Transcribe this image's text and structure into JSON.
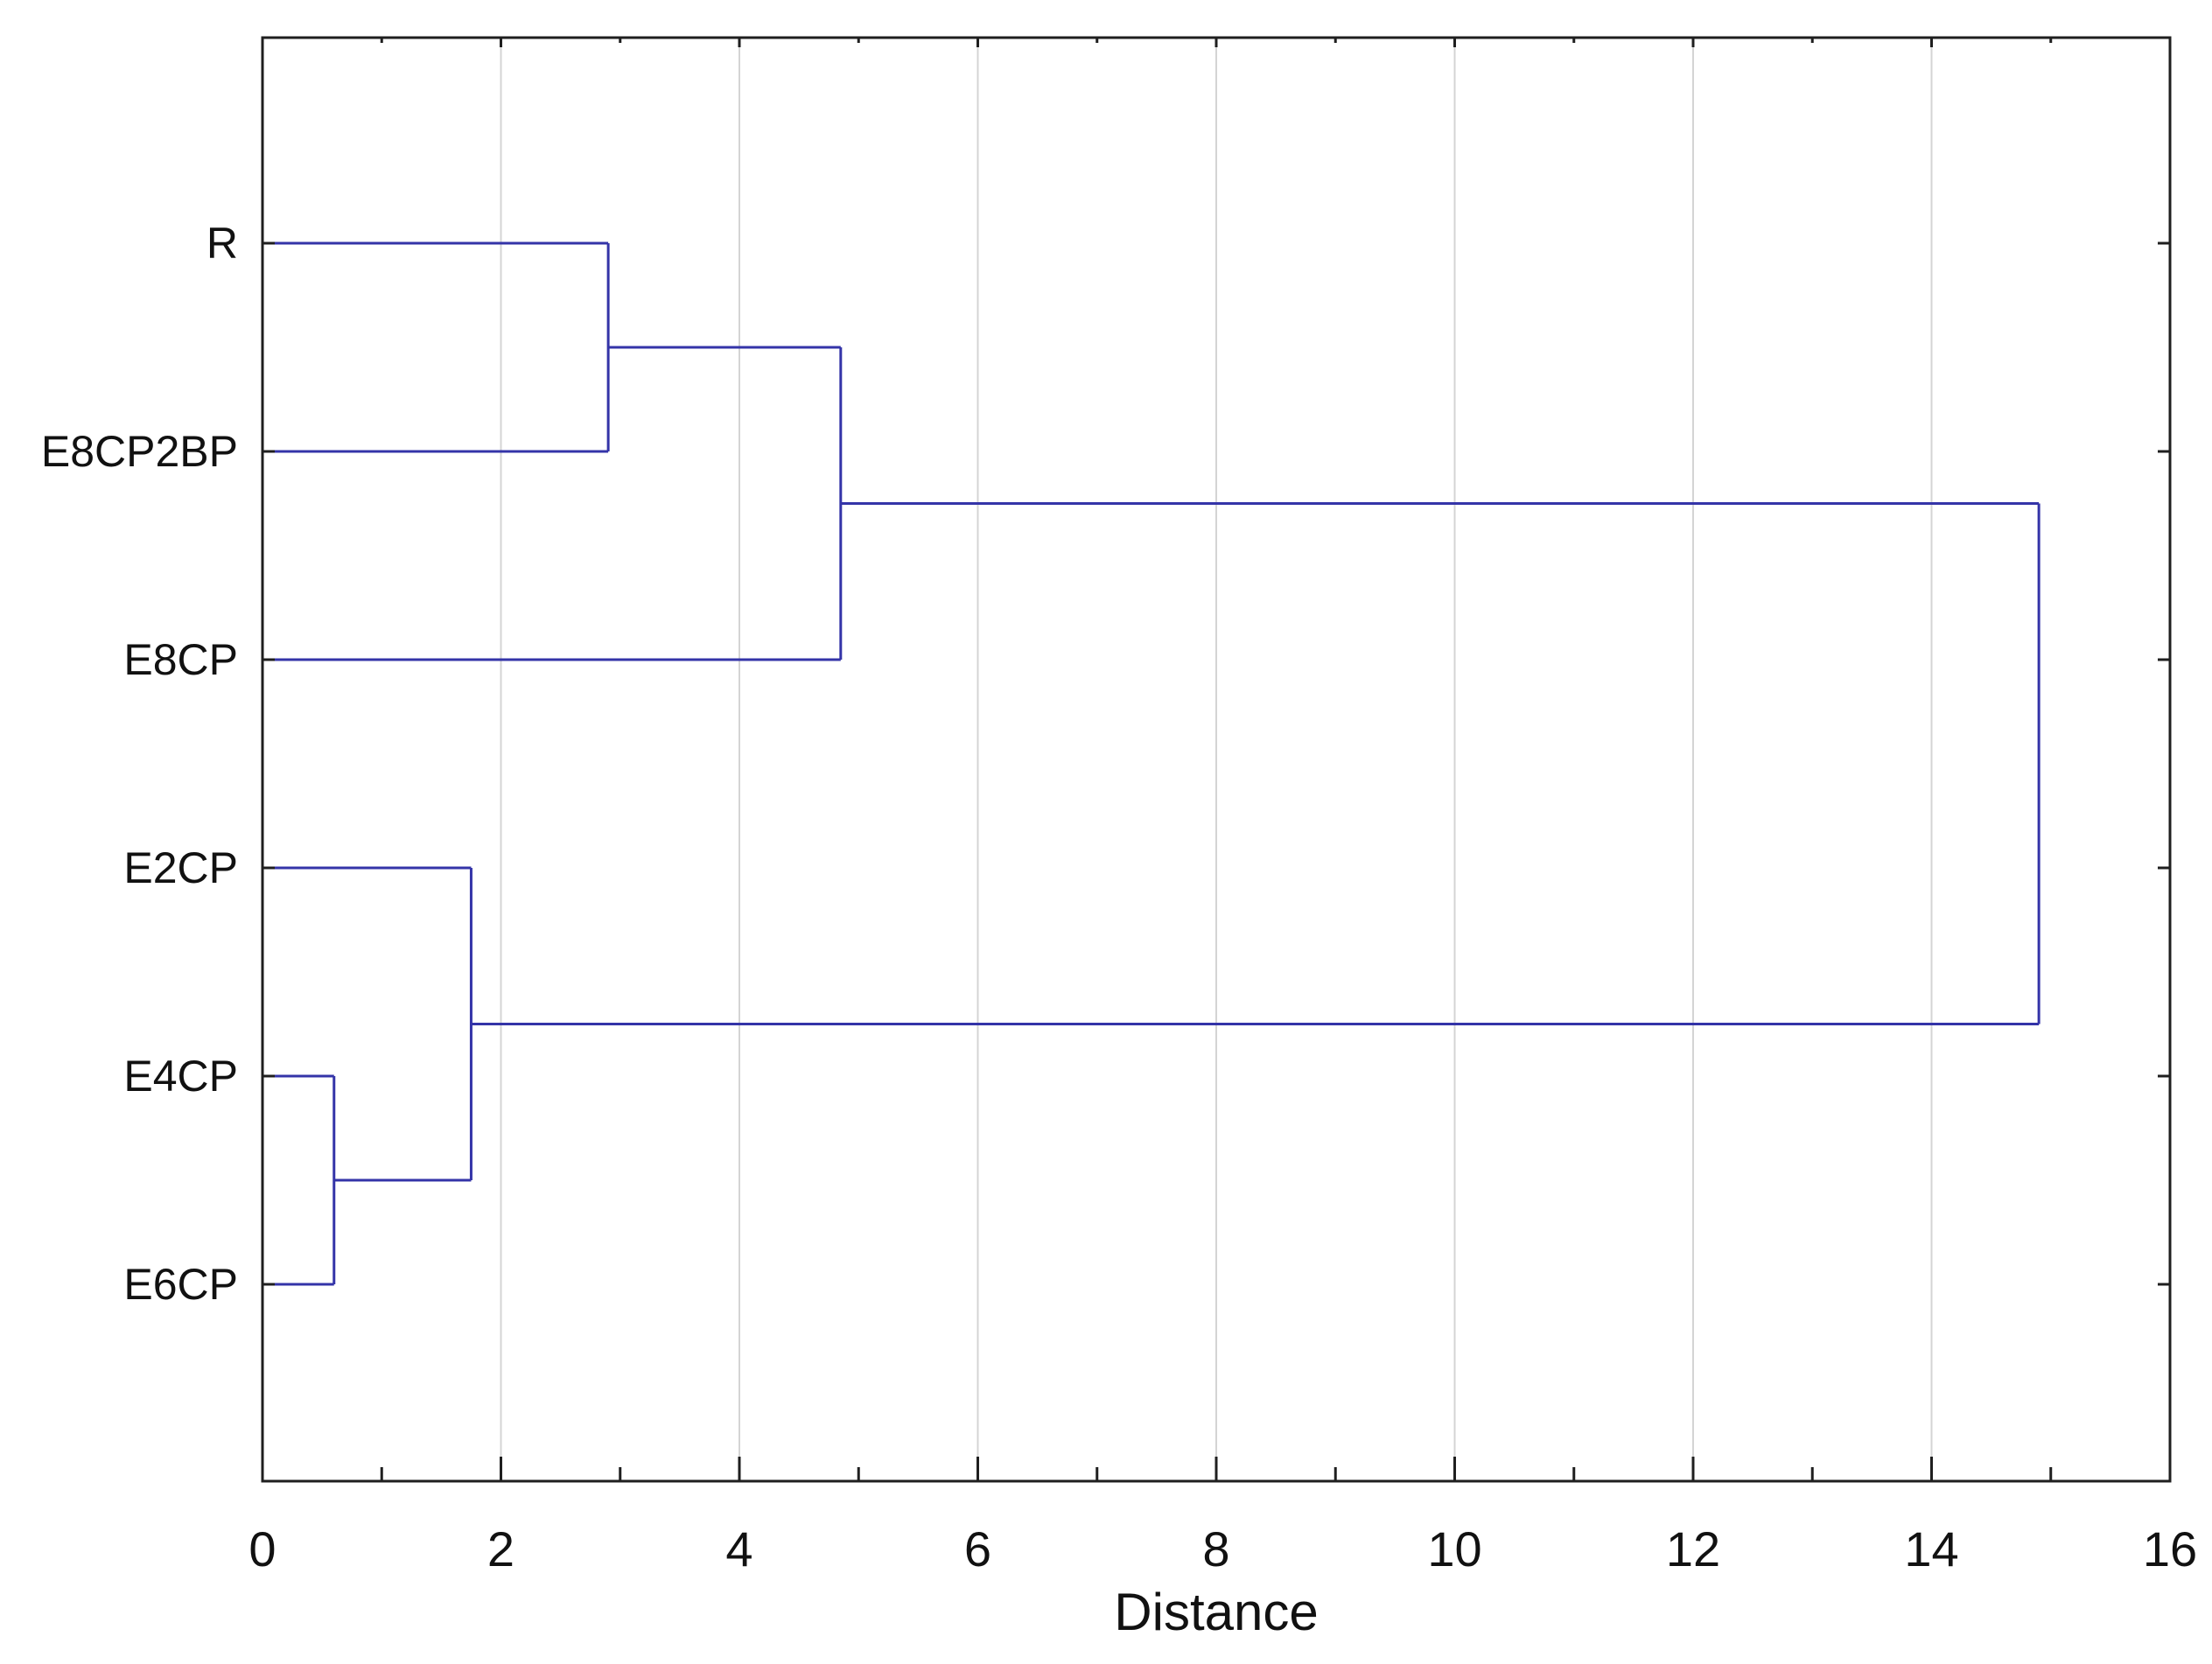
{
  "page": {
    "background": "#ffffff"
  },
  "chart_data": {
    "type": "dendrogram",
    "orientation": "horizontal",
    "title": "",
    "xlabel": "Distance",
    "xlim": [
      0,
      16
    ],
    "x_major_ticks": [
      0,
      2,
      4,
      6,
      8,
      10,
      12,
      14,
      16
    ],
    "x_minor_tick_step": 1,
    "grid": "vertical gridlines at labeled major ticks",
    "legend": "none",
    "leaves_top_to_bottom": [
      "R",
      "E8CP2BP",
      "E8CP",
      "E2CP",
      "E4CP",
      "E6CP"
    ],
    "linkage_steps": [
      {
        "join": [
          "E4CP",
          "E6CP"
        ],
        "distance": 0.6
      },
      {
        "join": [
          "E2CP",
          "(E4CP,E6CP)"
        ],
        "distance": 1.75
      },
      {
        "join": [
          "R",
          "E8CP2BP"
        ],
        "distance": 2.9
      },
      {
        "join": [
          "(R,E8CP2BP)",
          "E8CP"
        ],
        "distance": 4.85
      },
      {
        "join": [
          "(R,E8CP2BP,E8CP)",
          "(E2CP,E4CP,E6CP)"
        ],
        "distance": 14.9
      }
    ],
    "tree": {
      "d": 14.9,
      "children": [
        {
          "d": 4.85,
          "children": [
            {
              "d": 2.9,
              "children": [
                {
                  "leaf": "R"
                },
                {
                  "leaf": "E8CP2BP"
                }
              ]
            },
            {
              "leaf": "E8CP"
            }
          ]
        },
        {
          "d": 1.75,
          "children": [
            {
              "leaf": "E2CP"
            },
            {
              "d": 0.6,
              "children": [
                {
                  "leaf": "E4CP"
                },
                {
                  "leaf": "E6CP"
                }
              ]
            }
          ]
        }
      ]
    },
    "colors": {
      "link": "#3434a8",
      "frame": "#1f1f1f",
      "grid": "#d4d4d4",
      "text": "#111111",
      "background": "#ffffff"
    }
  }
}
